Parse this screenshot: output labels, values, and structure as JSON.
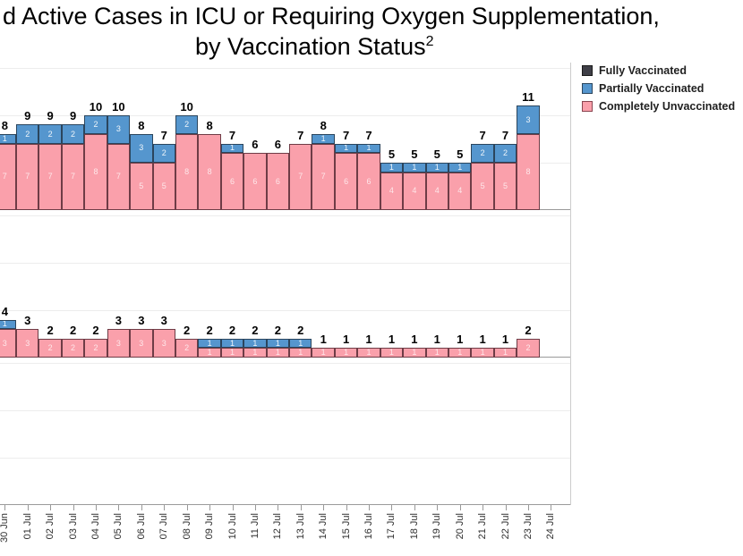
{
  "title": {
    "line1": "d Active Cases in ICU or Requiring Oxygen Supplementation,",
    "line2": "by Vaccination Status",
    "line2_superscript": "2"
  },
  "legend": {
    "position": "top-right",
    "items": [
      {
        "label": "Fully Vaccinated",
        "color": "#3f3f47",
        "border": "#1a1a1a"
      },
      {
        "label": "Partially Vaccinated",
        "color": "#5596CE",
        "border": "#2b455d"
      },
      {
        "label": "Completely Unvaccinated",
        "color": "#FAA0AB",
        "border": "#8a4550"
      }
    ]
  },
  "colors": {
    "fully_vaccinated": "#3f3f47",
    "partially_vaccinated": "#5596CE",
    "completely_unvaccinated": "#FAA0AB",
    "partially_border": "#2b455d",
    "unvaccinated_border": "#6e3c46",
    "gridline": "#ededed",
    "axis_line": "#9a9a9a"
  },
  "x_axis": {
    "labels": [
      "30 Jun",
      "01 Jul",
      "02 Jul",
      "03 Jul",
      "04 Jul",
      "05 Jul",
      "06 Jul",
      "07 Jul",
      "08 Jul",
      "09 Jul",
      "10 Jul",
      "11 Jul",
      "12 Jul",
      "13 Jul",
      "14 Jul",
      "15 Jul",
      "16 Jul",
      "17 Jul",
      "18 Jul",
      "19 Jul",
      "20 Jul",
      "21 Jul",
      "22 Jul",
      "23 Jul",
      "24 Jul"
    ]
  },
  "chart_data": [
    {
      "type": "bar",
      "stacked": true,
      "panel": "top",
      "categories": [
        "30 Jun",
        "01 Jul",
        "02 Jul",
        "03 Jul",
        "04 Jul",
        "05 Jul",
        "06 Jul",
        "07 Jul",
        "08 Jul",
        "09 Jul",
        "10 Jul",
        "11 Jul",
        "12 Jul",
        "13 Jul",
        "14 Jul",
        "15 Jul",
        "16 Jul",
        "17 Jul",
        "18 Jul",
        "19 Jul",
        "20 Jul",
        "21 Jul",
        "22 Jul",
        "23 Jul"
      ],
      "series": [
        {
          "name": "Fully Vaccinated",
          "color": "#3f3f47",
          "values": [
            0,
            0,
            0,
            0,
            0,
            0,
            0,
            0,
            0,
            0,
            0,
            0,
            0,
            0,
            0,
            0,
            0,
            0,
            0,
            0,
            0,
            0,
            0,
            0
          ]
        },
        {
          "name": "Partially Vaccinated",
          "color": "#5596CE",
          "values": [
            1,
            2,
            2,
            2,
            2,
            3,
            3,
            2,
            2,
            0,
            1,
            0,
            0,
            0,
            1,
            1,
            1,
            1,
            1,
            1,
            1,
            2,
            2,
            3
          ]
        },
        {
          "name": "Completely Unvaccinated",
          "color": "#FAA0AB",
          "values": [
            7,
            7,
            7,
            7,
            8,
            7,
            5,
            5,
            8,
            8,
            6,
            6,
            6,
            7,
            7,
            6,
            6,
            4,
            4,
            4,
            4,
            5,
            5,
            8
          ]
        }
      ],
      "totals": [
        8,
        9,
        9,
        9,
        10,
        10,
        8,
        7,
        10,
        8,
        7,
        6,
        6,
        7,
        8,
        7,
        7,
        5,
        5,
        5,
        5,
        7,
        7,
        11
      ],
      "ylim": [
        0,
        15.5
      ],
      "gridlines_y": [
        5,
        10,
        15
      ],
      "grid": true
    },
    {
      "type": "bar",
      "stacked": true,
      "panel": "middle",
      "categories": [
        "30 Jun",
        "01 Jul",
        "02 Jul",
        "03 Jul",
        "04 Jul",
        "05 Jul",
        "06 Jul",
        "07 Jul",
        "08 Jul",
        "09 Jul",
        "10 Jul",
        "11 Jul",
        "12 Jul",
        "13 Jul",
        "14 Jul",
        "15 Jul",
        "16 Jul",
        "17 Jul",
        "18 Jul",
        "19 Jul",
        "20 Jul",
        "21 Jul",
        "22 Jul",
        "23 Jul"
      ],
      "series": [
        {
          "name": "Fully Vaccinated",
          "color": "#3f3f47",
          "values": [
            0,
            0,
            0,
            0,
            0,
            0,
            0,
            0,
            0,
            0,
            0,
            0,
            0,
            0,
            0,
            0,
            0,
            0,
            0,
            0,
            0,
            0,
            0,
            0
          ]
        },
        {
          "name": "Partially Vaccinated",
          "color": "#5596CE",
          "values": [
            1,
            0,
            0,
            0,
            0,
            0,
            0,
            0,
            0,
            1,
            1,
            1,
            1,
            1,
            0,
            0,
            0,
            0,
            0,
            0,
            0,
            0,
            0,
            0
          ]
        },
        {
          "name": "Completely Unvaccinated",
          "color": "#FAA0AB",
          "values": [
            3,
            3,
            2,
            2,
            2,
            3,
            3,
            3,
            2,
            1,
            1,
            1,
            1,
            1,
            1,
            1,
            1,
            1,
            1,
            1,
            1,
            1,
            1,
            2
          ]
        }
      ],
      "totals": [
        4,
        3,
        2,
        2,
        2,
        3,
        3,
        3,
        2,
        2,
        2,
        2,
        2,
        2,
        1,
        1,
        1,
        1,
        1,
        1,
        1,
        1,
        1,
        2
      ],
      "ylim": [
        0,
        15.5
      ],
      "gridlines_y": [
        5,
        10,
        15
      ],
      "grid": true
    },
    {
      "type": "bar",
      "stacked": true,
      "panel": "bottom",
      "categories": [
        "30 Jun",
        "01 Jul",
        "02 Jul",
        "03 Jul",
        "04 Jul",
        "05 Jul",
        "06 Jul",
        "07 Jul",
        "08 Jul",
        "09 Jul",
        "10 Jul",
        "11 Jul",
        "12 Jul",
        "13 Jul",
        "14 Jul",
        "15 Jul",
        "16 Jul",
        "17 Jul",
        "18 Jul",
        "19 Jul",
        "20 Jul",
        "21 Jul",
        "22 Jul",
        "23 Jul"
      ],
      "series": [],
      "totals": [],
      "ylim": [
        0,
        15.5
      ],
      "gridlines_y": [
        5,
        10,
        15
      ],
      "grid": true,
      "note": "empty panel (no bars visible)"
    }
  ]
}
